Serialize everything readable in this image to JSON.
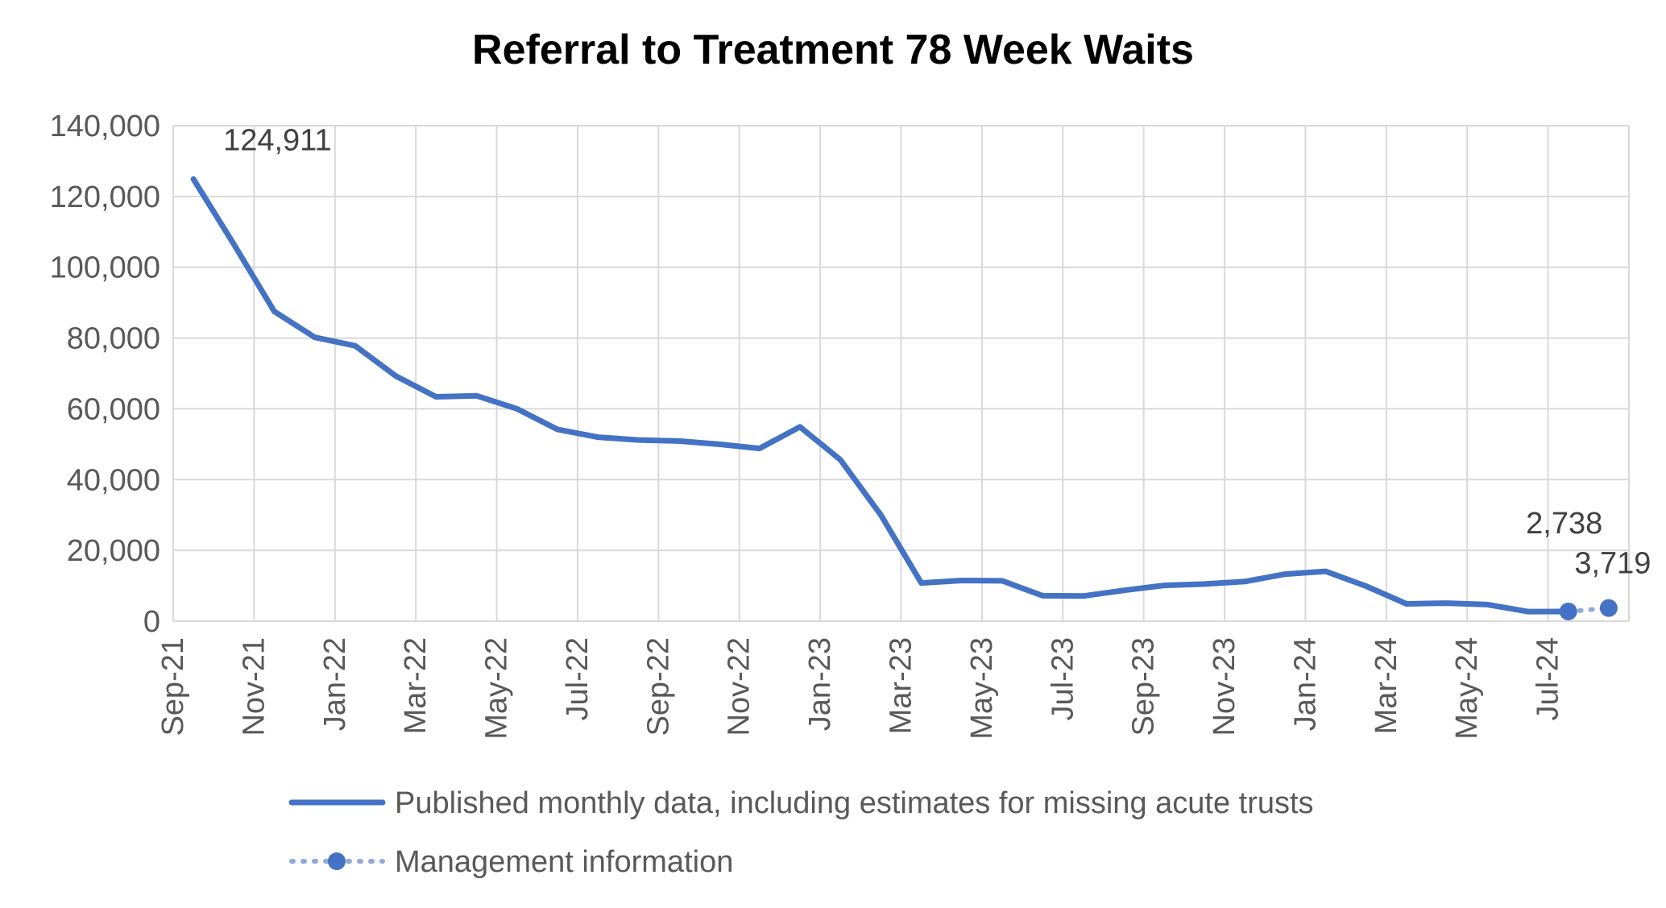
{
  "chart_data": {
    "type": "line",
    "title": "Referral to Treatment 78 Week Waits",
    "xlabel": "",
    "ylabel": "",
    "ylim": [
      0,
      140000
    ],
    "yticks": [
      0,
      20000,
      40000,
      60000,
      80000,
      100000,
      120000,
      140000
    ],
    "ytick_labels": [
      "0",
      "20,000",
      "40,000",
      "60,000",
      "80,000",
      "100,000",
      "120,000",
      "140,000"
    ],
    "x_tick_labels": [
      "Sep-21",
      "Nov-21",
      "Jan-22",
      "Mar-22",
      "May-22",
      "Jul-22",
      "Sep-22",
      "Nov-22",
      "Jan-23",
      "Mar-23",
      "May-23",
      "Jul-23",
      "Sep-23",
      "Nov-23",
      "Jan-24",
      "Mar-24",
      "May-24",
      "Jul-24"
    ],
    "categories": [
      "Sep-21",
      "Oct-21",
      "Nov-21",
      "Dec-21",
      "Jan-22",
      "Feb-22",
      "Mar-22",
      "Apr-22",
      "May-22",
      "Jun-22",
      "Jul-22",
      "Aug-22",
      "Sep-22",
      "Oct-22",
      "Nov-22",
      "Dec-22",
      "Jan-23",
      "Feb-23",
      "Mar-23",
      "Apr-23",
      "May-23",
      "Jun-23",
      "Jul-23",
      "Aug-23",
      "Sep-23",
      "Oct-23",
      "Nov-23",
      "Dec-23",
      "Jan-24",
      "Feb-24",
      "Mar-24",
      "Apr-24",
      "May-24",
      "Jun-24",
      "Jul-24",
      "Aug-24"
    ],
    "grid": true,
    "legend_position": "bottom",
    "series": [
      {
        "name": "Published monthly data, including estimates for missing acute trusts",
        "color": "#4472C4",
        "style": "solid",
        "values": [
          124911,
          106500,
          87500,
          80200,
          77800,
          69300,
          63400,
          63700,
          60000,
          54200,
          52000,
          51200,
          50900,
          50000,
          48800,
          54900,
          45600,
          30000,
          10800,
          11500,
          11400,
          7200,
          7100,
          8700,
          10100,
          10500,
          11200,
          13300,
          14100,
          9900,
          4900,
          5100,
          4700,
          2700,
          2738,
          null
        ]
      },
      {
        "name": "Management information",
        "color": "#4472C4",
        "style": "dotted",
        "markers": true,
        "values": [
          null,
          null,
          null,
          null,
          null,
          null,
          null,
          null,
          null,
          null,
          null,
          null,
          null,
          null,
          null,
          null,
          null,
          null,
          null,
          null,
          null,
          null,
          null,
          null,
          null,
          null,
          null,
          null,
          null,
          null,
          null,
          null,
          null,
          null,
          2738,
          3719
        ]
      }
    ],
    "annotations": [
      {
        "label": "124,911",
        "category": "Sep-21",
        "value": 124911
      },
      {
        "label": "2,738",
        "category": "Jul-24",
        "value": 2738
      },
      {
        "label": "3,719",
        "category": "Aug-24",
        "value": 3719
      }
    ]
  }
}
